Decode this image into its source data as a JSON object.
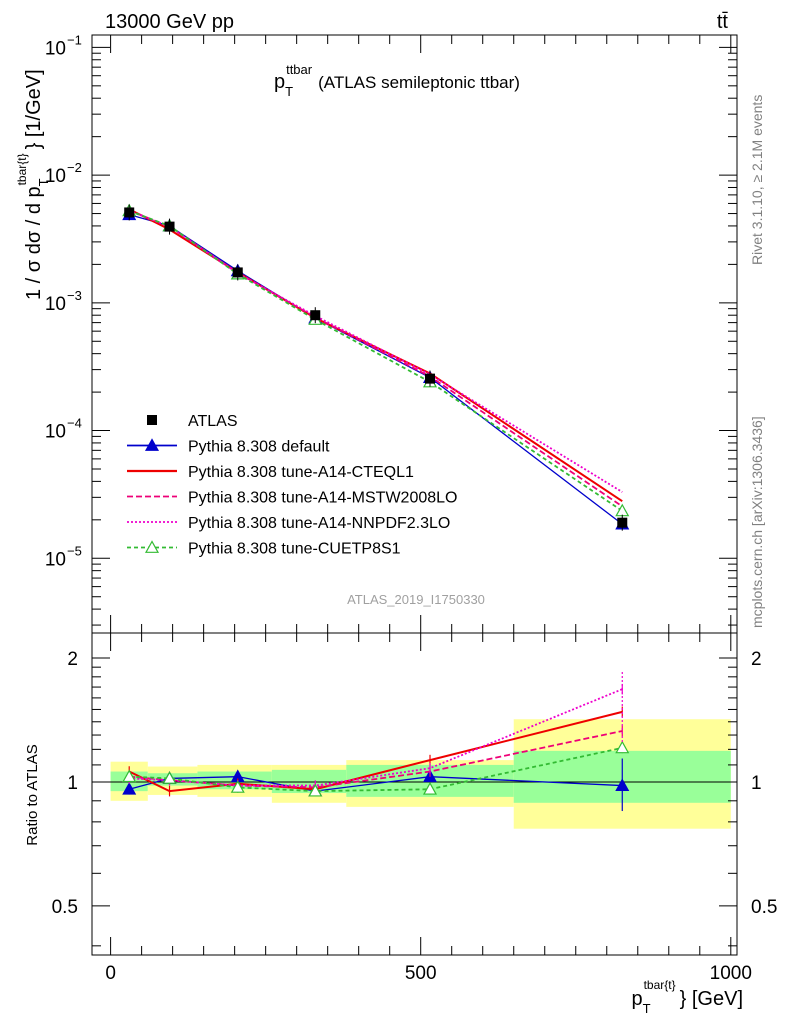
{
  "header": {
    "energy_label": "13000 GeV pp",
    "process_label": "tt̄",
    "analysis_id": "ATLAS_2019_I1750330",
    "side_note_top": "Rivet 3.1.10, ≥ 2.1M events",
    "side_note_bottom": "mcplots.cern.ch [arXiv:1306.3436]"
  },
  "main_plot": {
    "title_main": "p",
    "title_sub": "T",
    "title_sup": "ttbar",
    "title_rest": "(ATLAS semileptonic ttbar)",
    "ylabel_prefix": "1 / σ dσ / d p",
    "ylabel_sub": "T",
    "ylabel_sup": "tbar{t}",
    "ylabel_suffix": "} [1/GeV]",
    "ytick_labels": [
      "10",
      "10",
      "10",
      "10",
      "10"
    ],
    "ytick_exps": [
      "−1",
      "−2",
      "−3",
      "−4",
      "−5"
    ]
  },
  "ratio_plot": {
    "ylabel": "Ratio to ATLAS",
    "ytick_labels": [
      "2",
      "1",
      "0.5"
    ]
  },
  "xaxis": {
    "label_main": "p",
    "label_sub": "T",
    "label_sup": "tbar{t}",
    "label_rest": "} [GeV]",
    "tick_labels": [
      "0",
      "500",
      "1000"
    ]
  },
  "legend": {
    "entries": [
      "ATLAS",
      "Pythia 8.308 default",
      "Pythia 8.308 tune-A14-CTEQL1",
      "Pythia 8.308 tune-A14-MSTW2008LO",
      "Pythia 8.308 tune-A14-NNPDF2.3LO",
      "Pythia 8.308 tune-CUETP8S1"
    ]
  },
  "chart_data": {
    "type": "line",
    "x_range": [
      -30,
      1010
    ],
    "y_range_main": [
      2.6e-06,
      0.125
    ],
    "y_log_main": true,
    "y_range_ratio": [
      0.38,
      2.3
    ],
    "y_log_ratio": true,
    "bins": [
      [
        0,
        60
      ],
      [
        60,
        140
      ],
      [
        140,
        260
      ],
      [
        260,
        380
      ],
      [
        380,
        650
      ],
      [
        650,
        1000
      ]
    ],
    "x": [
      30,
      95,
      205,
      330,
      515,
      825
    ],
    "data": {
      "name": "ATLAS",
      "values": [
        0.0051,
        0.00395,
        0.00173,
        0.0008,
        0.000255,
        1.9e-05
      ],
      "band_inner_ratio": [
        [
          0.95,
          1.06
        ],
        [
          0.98,
          1.05
        ],
        [
          0.96,
          1.06
        ],
        [
          0.94,
          1.07
        ],
        [
          0.92,
          1.1
        ],
        [
          0.89,
          1.19
        ]
      ],
      "band_outer_ratio": [
        [
          0.9,
          1.12
        ],
        [
          0.93,
          1.09
        ],
        [
          0.92,
          1.1
        ],
        [
          0.89,
          1.1
        ],
        [
          0.87,
          1.13
        ],
        [
          0.77,
          1.42
        ]
      ]
    },
    "series": [
      {
        "name": "Pythia 8.308 default",
        "color": "#0000cc",
        "dash": "",
        "marker": "triangle-filled",
        "values": [
          0.0049,
          0.004,
          0.00178,
          0.00076,
          0.00026,
          1.85e-05
        ],
        "ratio": [
          0.96,
          1.02,
          1.03,
          0.95,
          1.03,
          0.98
        ]
      },
      {
        "name": "Pythia 8.308 tune-A14-CTEQL1",
        "color": "#ee0000",
        "dash": "",
        "marker": "none",
        "values": [
          0.0054,
          0.00375,
          0.00173,
          0.00076,
          0.00028,
          2.8e-05
        ],
        "ratio": [
          1.06,
          0.95,
          0.99,
          0.96,
          1.13,
          1.48
        ]
      },
      {
        "name": "Pythia 8.308 tune-A14-MSTW2008LO",
        "color": "#ee0077",
        "dash": "6,3",
        "marker": "none",
        "values": [
          0.0053,
          0.00395,
          0.00172,
          0.00077,
          0.000265,
          2.55e-05
        ],
        "ratio": [
          1.03,
          1.01,
          0.98,
          0.97,
          1.06,
          1.33
        ]
      },
      {
        "name": "Pythia 8.308 tune-A14-NNPDF2.3LO",
        "color": "#ee00cc",
        "dash": "2,2",
        "marker": "none",
        "values": [
          0.00525,
          0.00395,
          0.0017,
          0.00079,
          0.000275,
          3.3e-05
        ],
        "ratio": [
          1.02,
          1.01,
          0.98,
          0.98,
          1.08,
          1.68
        ]
      },
      {
        "name": "Pythia 8.308 tune-CUETP8S1",
        "color": "#33bb33",
        "dash": "4,3",
        "marker": "triangle-open",
        "values": [
          0.00525,
          0.004,
          0.00168,
          0.00074,
          0.00024,
          2.35e-05
        ],
        "ratio": [
          1.03,
          1.02,
          0.97,
          0.95,
          0.96,
          1.21
        ]
      }
    ]
  }
}
